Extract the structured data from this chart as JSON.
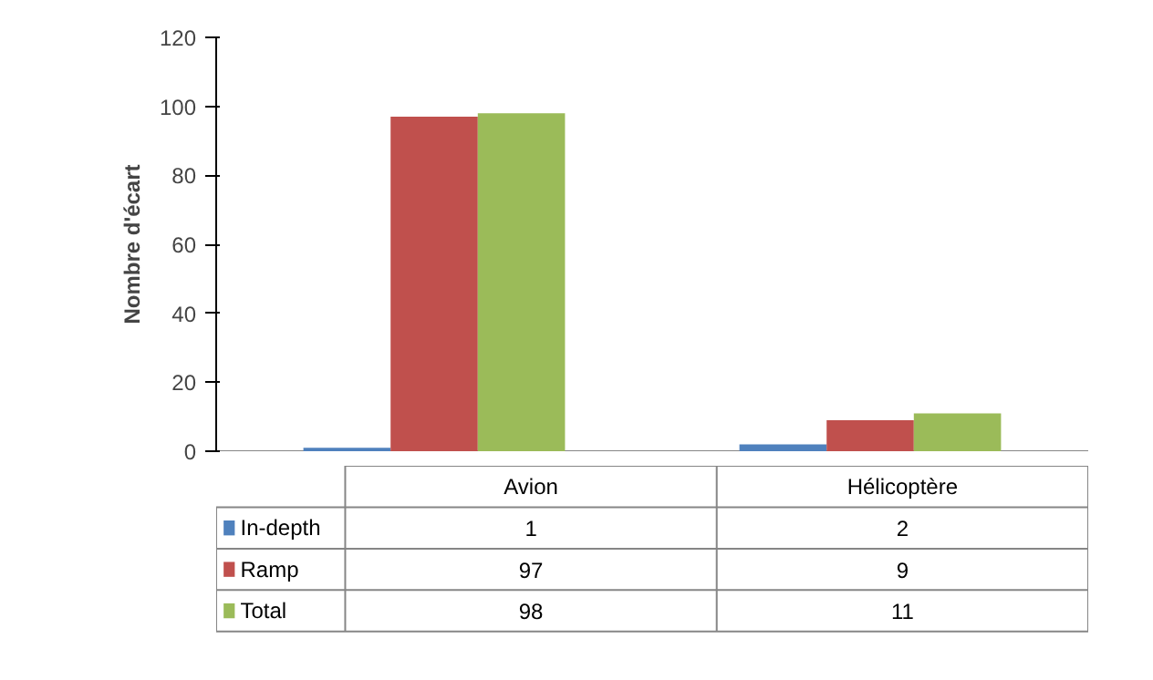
{
  "chart_data": {
    "type": "bar",
    "ylabel": "Nombre d'écart",
    "categories": [
      "Avion",
      "Hélicoptère"
    ],
    "series": [
      {
        "name": "In-depth",
        "color": "#4f81bd",
        "values": [
          1,
          2
        ]
      },
      {
        "name": "Ramp",
        "color": "#c0504d",
        "values": [
          97,
          9
        ]
      },
      {
        "name": "Total",
        "color": "#9bbb59",
        "values": [
          98,
          11
        ]
      }
    ],
    "ylim": [
      0,
      120
    ],
    "yticks": [
      0,
      20,
      40,
      60,
      80,
      100,
      120
    ],
    "grid": false,
    "legend": "bottom",
    "data_labels": true
  }
}
